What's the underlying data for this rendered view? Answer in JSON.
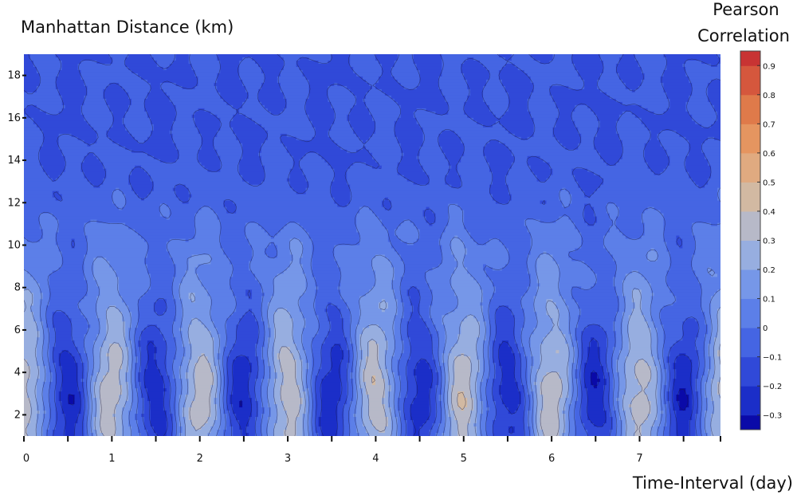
{
  "chart_data": {
    "type": "contour",
    "ylabel": "Manhattan Distance (km)",
    "xlabel": "Time-Interval (day)",
    "colorbar_title_line1": "Pearson",
    "colorbar_title_line2": "Correlation",
    "xlim": [
      0,
      7.92
    ],
    "ylim": [
      1.0,
      19.0
    ],
    "x_ticks": [
      0,
      1,
      2,
      3,
      4,
      5,
      6,
      7
    ],
    "x_tick_labels": [
      "0",
      "1",
      "2",
      "3",
      "4",
      "5",
      "6",
      "7"
    ],
    "x_minor_ticks": [
      0.5,
      1.5,
      2.5,
      3.5,
      4.5,
      5.5,
      6.5,
      7.5
    ],
    "y_ticks": [
      2,
      4,
      6,
      8,
      10,
      12,
      14,
      16,
      18
    ],
    "y_tick_labels": [
      "2",
      "4",
      "6",
      "8",
      "10",
      "12",
      "14",
      "16",
      "18"
    ],
    "contour_levels": [
      -0.35,
      -0.3,
      -0.2,
      -0.1,
      0,
      0.1,
      0.2,
      0.3,
      0.4,
      0.5,
      0.6,
      0.7,
      0.8,
      0.9,
      0.95
    ],
    "colorscale": [
      "#0a0aa8",
      "#1b2ec8",
      "#3049d8",
      "#4565e3",
      "#5c7fe8",
      "#7697e8",
      "#97aee0",
      "#b7b9c8",
      "#d2b9a2",
      "#e0aa80",
      "#e59560",
      "#df7a4a",
      "#d5573d",
      "#c83333"
    ],
    "colorbar_ticks": [
      -0.3,
      -0.2,
      -0.1,
      0,
      0.1,
      0.2,
      0.3,
      0.4,
      0.5,
      0.6,
      0.7,
      0.8,
      0.9
    ],
    "colorbar_tick_labels": [
      "−0.3",
      "−0.2",
      "−0.1",
      "0",
      "0.1",
      "0.2",
      "0.3",
      "0.4",
      "0.5",
      "0.6",
      "0.7",
      "0.8",
      "0.9"
    ],
    "pattern": {
      "period_days": 1.0,
      "peak_correlation_at_integer_days_near_2to4km": 0.35,
      "trough_correlation_at_half_days_near_3to5km": -0.25,
      "correlation_above_12km": -0.1
    }
  }
}
